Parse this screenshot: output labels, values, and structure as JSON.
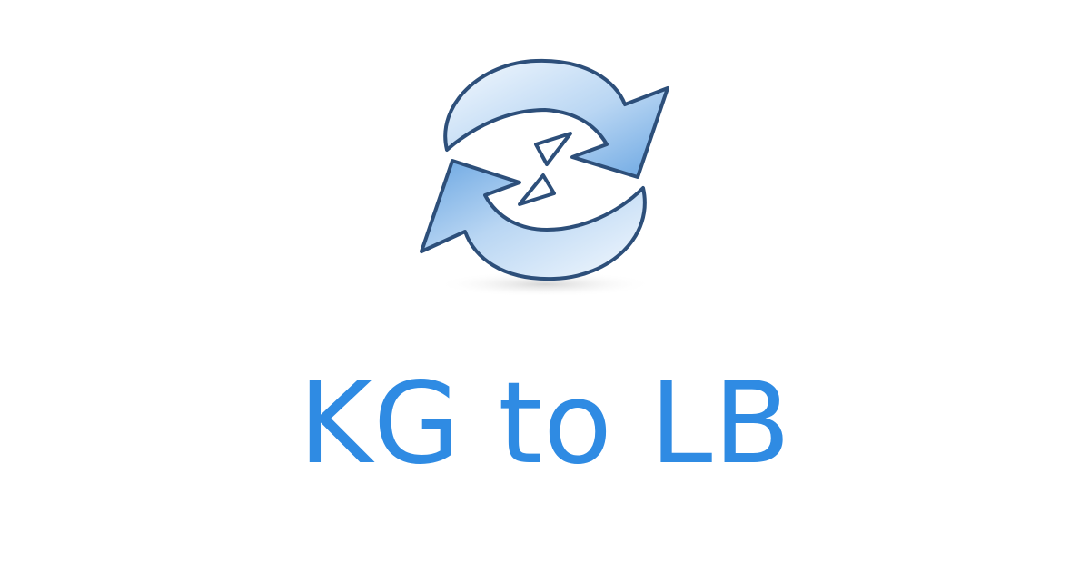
{
  "logo": {
    "icon": "refresh-arrows-icon",
    "colors": {
      "stroke": "#2d4f7a",
      "fill_light": "#eaf3fc",
      "fill_dark": "#7fb2e6",
      "shadow": "#d7d7d7"
    }
  },
  "title": {
    "text": "KG to LB",
    "color": "#2f8be3"
  }
}
